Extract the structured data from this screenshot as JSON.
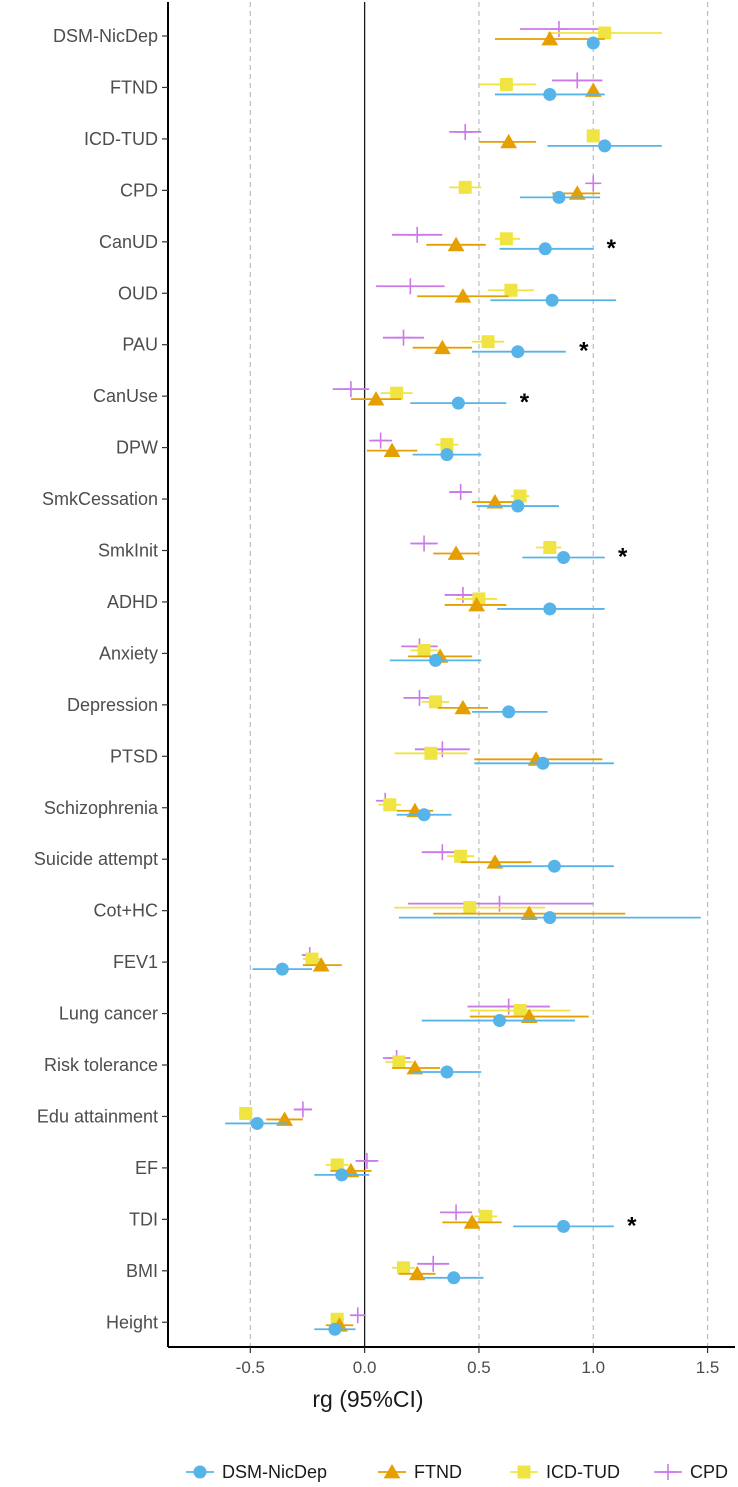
{
  "chart_data": {
    "type": "forest",
    "xlabel": "rg (95%CI)",
    "xlim": [
      -0.86,
      1.62
    ],
    "xticks": [
      -0.5,
      0.0,
      0.5,
      1.0,
      1.5
    ],
    "xtick_labels": [
      "-0.5",
      "0.0",
      "0.5",
      "1.0",
      "1.5"
    ],
    "reference_line": 0,
    "grid_dashed_at": [
      -0.5,
      0.5,
      1.0,
      1.5
    ],
    "legend_position": "bottom",
    "categories": [
      "DSM-NicDep",
      "FTND",
      "ICD-TUD",
      "CPD",
      "CanUD",
      "OUD",
      "PAU",
      "CanUse",
      "DPW",
      "SmkCessation",
      "SmkInit",
      "ADHD",
      "Anxiety",
      "Depression",
      "PTSD",
      "Schizophrenia",
      "Suicide attempt",
      "Cot+HC",
      "FEV1",
      "Lung cancer",
      "Risk tolerance",
      "Edu attainment",
      "EF",
      "TDI",
      "BMI",
      "Height"
    ],
    "significance_marker": "*",
    "significant_categories": [
      "CanUD",
      "PAU",
      "CanUse",
      "SmkInit",
      "TDI"
    ],
    "series": [
      {
        "name": "DSM-NicDep",
        "color": "#56B4E9",
        "shape": "circle",
        "estimates": [
          1.0,
          0.81,
          1.05,
          0.85,
          0.79,
          0.82,
          0.67,
          0.41,
          0.36,
          0.67,
          0.87,
          0.81,
          0.31,
          0.63,
          0.78,
          0.26,
          0.83,
          0.81,
          -0.36,
          0.59,
          0.36,
          -0.47,
          -0.1,
          0.87,
          0.39,
          -0.13
        ],
        "lower": [
          null,
          0.57,
          0.8,
          0.68,
          0.59,
          0.55,
          0.47,
          0.2,
          0.21,
          0.49,
          0.69,
          0.58,
          0.11,
          0.47,
          0.48,
          0.14,
          0.58,
          0.15,
          -0.49,
          0.25,
          0.21,
          -0.61,
          -0.22,
          0.65,
          0.26,
          -0.22
        ],
        "upper": [
          null,
          1.05,
          1.3,
          1.03,
          1.0,
          1.1,
          0.88,
          0.62,
          0.51,
          0.85,
          1.05,
          1.05,
          0.51,
          0.8,
          1.09,
          0.38,
          1.09,
          1.47,
          -0.23,
          0.92,
          0.51,
          -0.34,
          0.02,
          1.09,
          0.52,
          -0.04
        ]
      },
      {
        "name": "FTND",
        "color": "#E69F00",
        "shape": "triangle",
        "estimates": [
          0.81,
          1.0,
          0.63,
          0.93,
          0.4,
          0.43,
          0.34,
          0.05,
          0.12,
          0.57,
          0.4,
          0.49,
          0.33,
          0.43,
          0.75,
          0.22,
          0.57,
          0.72,
          -0.19,
          0.72,
          0.22,
          -0.35,
          -0.06,
          0.47,
          0.23,
          -0.11
        ],
        "lower": [
          0.57,
          null,
          0.5,
          0.82,
          0.27,
          0.23,
          0.21,
          -0.06,
          0.01,
          0.47,
          0.3,
          0.35,
          0.19,
          0.32,
          0.48,
          0.14,
          0.42,
          0.3,
          -0.27,
          0.46,
          0.12,
          -0.43,
          -0.15,
          0.34,
          0.15,
          -0.17
        ],
        "upper": [
          1.05,
          null,
          0.75,
          1.03,
          0.53,
          0.63,
          0.47,
          0.16,
          0.23,
          0.67,
          0.5,
          0.62,
          0.47,
          0.54,
          1.04,
          0.3,
          0.73,
          1.14,
          -0.1,
          0.98,
          0.33,
          -0.27,
          0.03,
          0.6,
          0.31,
          -0.05
        ]
      },
      {
        "name": "ICD-TUD",
        "color": "#F0E442",
        "shape": "square",
        "estimates": [
          1.05,
          0.62,
          1.0,
          0.44,
          0.62,
          0.64,
          0.54,
          0.14,
          0.36,
          0.68,
          0.81,
          0.5,
          0.26,
          0.31,
          0.29,
          0.11,
          0.42,
          0.46,
          -0.23,
          0.68,
          0.15,
          -0.52,
          -0.12,
          0.53,
          0.17,
          -0.12
        ],
        "lower": [
          0.8,
          0.5,
          null,
          0.37,
          0.57,
          0.54,
          0.47,
          0.07,
          0.31,
          0.64,
          0.75,
          0.4,
          0.2,
          0.25,
          0.13,
          0.06,
          0.36,
          0.13,
          -0.27,
          0.46,
          0.09,
          -0.55,
          -0.17,
          0.48,
          0.12,
          -0.15
        ],
        "upper": [
          1.3,
          0.75,
          null,
          0.51,
          0.68,
          0.74,
          0.61,
          0.21,
          0.41,
          0.72,
          0.86,
          0.58,
          0.32,
          0.37,
          0.45,
          0.16,
          0.48,
          0.79,
          -0.19,
          0.9,
          0.21,
          -0.49,
          -0.07,
          0.58,
          0.22,
          -0.09
        ]
      },
      {
        "name": "CPD",
        "color": "#CC79E8",
        "shape": "plus",
        "estimates": [
          0.85,
          0.93,
          0.44,
          1.0,
          0.23,
          0.2,
          0.17,
          -0.06,
          0.07,
          0.42,
          0.26,
          0.43,
          0.24,
          0.24,
          0.34,
          0.09,
          0.34,
          0.59,
          -0.24,
          0.63,
          0.14,
          -0.27,
          0.01,
          0.4,
          0.3,
          -0.03
        ],
        "lower": [
          0.68,
          0.82,
          0.37,
          null,
          0.12,
          0.05,
          0.08,
          -0.14,
          0.02,
          0.37,
          0.2,
          0.35,
          0.16,
          0.17,
          0.22,
          0.05,
          0.25,
          0.19,
          -0.27,
          0.45,
          0.08,
          -0.31,
          -0.04,
          0.33,
          0.23,
          -0.06
        ],
        "upper": [
          1.03,
          1.04,
          0.51,
          null,
          0.34,
          0.35,
          0.26,
          0.02,
          0.12,
          0.47,
          0.32,
          0.51,
          0.32,
          0.31,
          0.46,
          0.13,
          0.43,
          1.0,
          -0.21,
          0.81,
          0.2,
          -0.23,
          0.06,
          0.47,
          0.37,
          0.0
        ]
      }
    ]
  }
}
